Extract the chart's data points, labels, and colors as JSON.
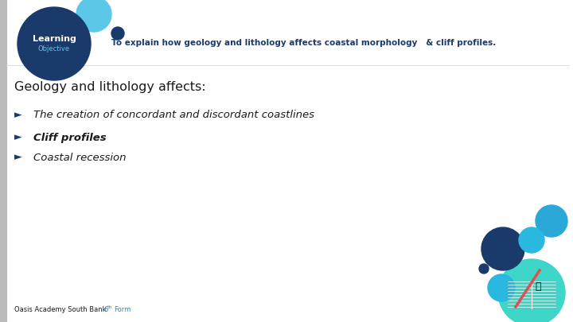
{
  "bg_color": "#ffffff",
  "slide_title_text": "To explain how geology and lithology affects coastal morphology   & cliff profiles.",
  "learning_circle_color": "#1a3a6b",
  "learning_text": "Learning",
  "objective_text": "Objective",
  "light_blue_circle_color": "#5bc8e8",
  "dark_dot_color": "#1a3a6b",
  "header_text_color": "#1a3a6b",
  "section_title": "Geology and lithology affects:",
  "section_title_color": "#1a1a1a",
  "bullet_items": [
    {
      "text": "The creation of concordant and discordant coastlines",
      "bold": false,
      "color": "#1a1a1a"
    },
    {
      "text": "Cliff profiles",
      "bold": true,
      "color": "#1a1a1a"
    },
    {
      "text": "Coastal recession",
      "bold": false,
      "color": "#1a1a1a"
    }
  ],
  "bullet_color": "#1a3a6b",
  "footer_text": "Oasis Academy South Bank ",
  "footer_color": "#1a1a1a",
  "footer_link_color": "#1a8fcc",
  "left_bar_color": "#bbbbbb"
}
